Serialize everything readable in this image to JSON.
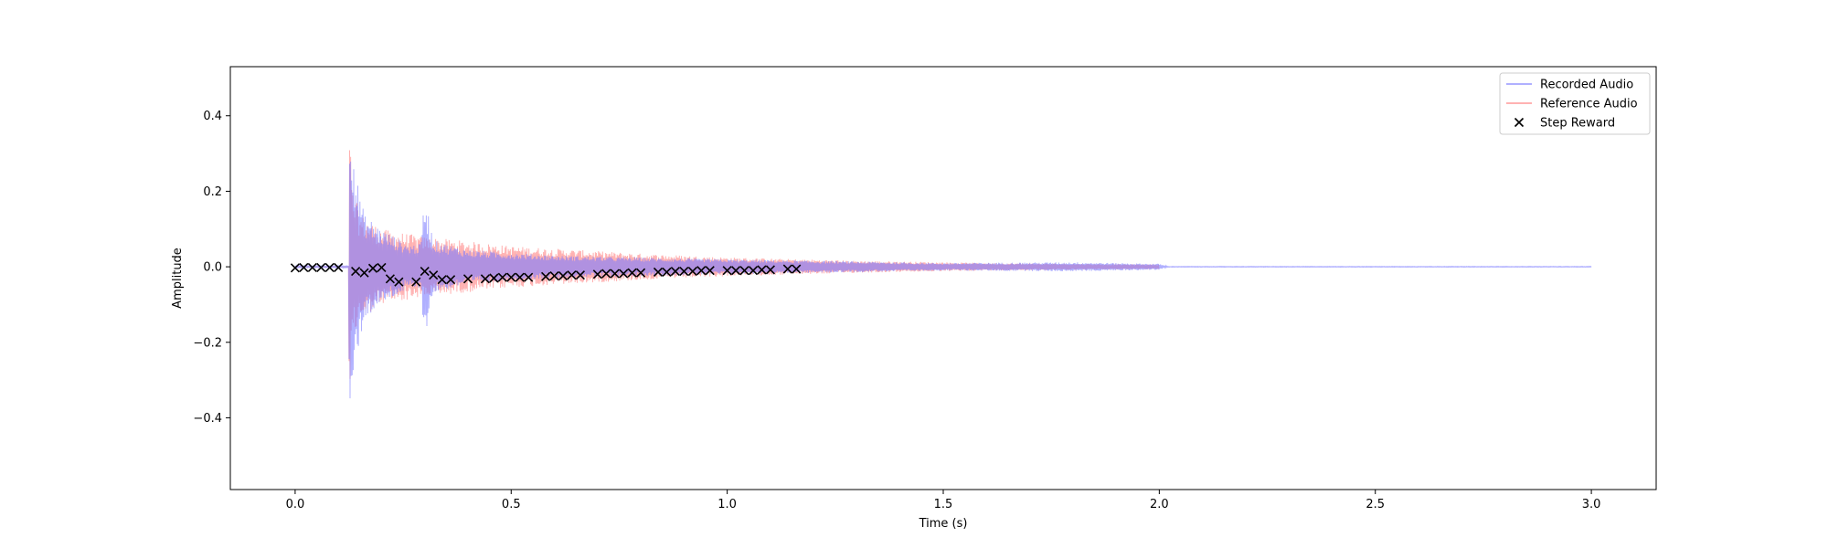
{
  "chart_data": {
    "type": "line",
    "title": "",
    "xlabel": "Time (s)",
    "ylabel": "Amplitude",
    "xlim": [
      -0.15,
      3.15
    ],
    "ylim": [
      -0.59,
      0.53
    ],
    "xticks": [
      0.0,
      0.5,
      1.0,
      1.5,
      2.0,
      2.5,
      3.0
    ],
    "xtick_labels": [
      "0.0",
      "0.5",
      "1.0",
      "1.5",
      "2.0",
      "2.5",
      "3.0"
    ],
    "yticks": [
      -0.4,
      -0.2,
      0.0,
      0.2,
      0.4
    ],
    "ytick_labels": [
      "−0.4",
      "−0.2",
      "0.0",
      "0.2",
      "0.4"
    ],
    "grid": false,
    "legend_position": "top-right",
    "series": [
      {
        "name": "Recorded Audio",
        "kind": "waveform",
        "color": "#7b7bff",
        "opacity": 0.6,
        "onset": 0.125,
        "x_end": 3.0,
        "envelope": [
          [
            0.0,
            0.004
          ],
          [
            0.124,
            0.004
          ],
          [
            0.125,
            0.48
          ],
          [
            0.14,
            0.25
          ],
          [
            0.16,
            0.14
          ],
          [
            0.2,
            0.1
          ],
          [
            0.26,
            0.06
          ],
          [
            0.29,
            0.06
          ],
          [
            0.3,
            0.19
          ],
          [
            0.32,
            0.07
          ],
          [
            0.4,
            0.045
          ],
          [
            0.6,
            0.03
          ],
          [
            0.9,
            0.022
          ],
          [
            1.2,
            0.016
          ],
          [
            1.5,
            0.01
          ],
          [
            1.8,
            0.012
          ],
          [
            2.0,
            0.008
          ],
          [
            2.02,
            0.001
          ],
          [
            3.0,
            0.001
          ]
        ]
      },
      {
        "name": "Reference Audio",
        "kind": "waveform",
        "color": "#ff6666",
        "opacity": 0.5,
        "onset": 0.125,
        "x_end": 2.0,
        "envelope": [
          [
            0.0,
            0.0
          ],
          [
            0.124,
            0.0
          ],
          [
            0.125,
            0.53
          ],
          [
            0.13,
            0.22
          ],
          [
            0.15,
            0.14
          ],
          [
            0.2,
            0.1
          ],
          [
            0.3,
            0.08
          ],
          [
            0.5,
            0.055
          ],
          [
            0.8,
            0.035
          ],
          [
            1.0,
            0.025
          ],
          [
            1.3,
            0.016
          ],
          [
            1.6,
            0.01
          ],
          [
            2.0,
            0.006
          ],
          [
            3.0,
            0.0
          ]
        ]
      },
      {
        "name": "Step Reward",
        "kind": "scatter",
        "color": "#000000",
        "marker": "x",
        "points": [
          [
            0.0,
            -0.003
          ],
          [
            0.02,
            -0.002
          ],
          [
            0.04,
            -0.002
          ],
          [
            0.06,
            -0.002
          ],
          [
            0.08,
            -0.002
          ],
          [
            0.1,
            -0.002
          ],
          [
            0.14,
            -0.012
          ],
          [
            0.16,
            -0.016
          ],
          [
            0.18,
            -0.004
          ],
          [
            0.2,
            -0.002
          ],
          [
            0.22,
            -0.032
          ],
          [
            0.24,
            -0.04
          ],
          [
            0.28,
            -0.04
          ],
          [
            0.3,
            -0.012
          ],
          [
            0.32,
            -0.022
          ],
          [
            0.34,
            -0.034
          ],
          [
            0.36,
            -0.034
          ],
          [
            0.4,
            -0.032
          ],
          [
            0.44,
            -0.032
          ],
          [
            0.46,
            -0.03
          ],
          [
            0.48,
            -0.028
          ],
          [
            0.5,
            -0.028
          ],
          [
            0.52,
            -0.028
          ],
          [
            0.54,
            -0.028
          ],
          [
            0.58,
            -0.026
          ],
          [
            0.6,
            -0.024
          ],
          [
            0.62,
            -0.024
          ],
          [
            0.64,
            -0.022
          ],
          [
            0.66,
            -0.022
          ],
          [
            0.7,
            -0.02
          ],
          [
            0.72,
            -0.018
          ],
          [
            0.74,
            -0.018
          ],
          [
            0.76,
            -0.018
          ],
          [
            0.78,
            -0.016
          ],
          [
            0.8,
            -0.016
          ],
          [
            0.84,
            -0.014
          ],
          [
            0.86,
            -0.014
          ],
          [
            0.88,
            -0.012
          ],
          [
            0.9,
            -0.012
          ],
          [
            0.92,
            -0.012
          ],
          [
            0.94,
            -0.01
          ],
          [
            0.96,
            -0.01
          ],
          [
            1.0,
            -0.01
          ],
          [
            1.02,
            -0.01
          ],
          [
            1.04,
            -0.01
          ],
          [
            1.06,
            -0.01
          ],
          [
            1.08,
            -0.008
          ],
          [
            1.1,
            -0.008
          ],
          [
            1.14,
            -0.006
          ],
          [
            1.16,
            -0.006
          ]
        ]
      }
    ]
  }
}
